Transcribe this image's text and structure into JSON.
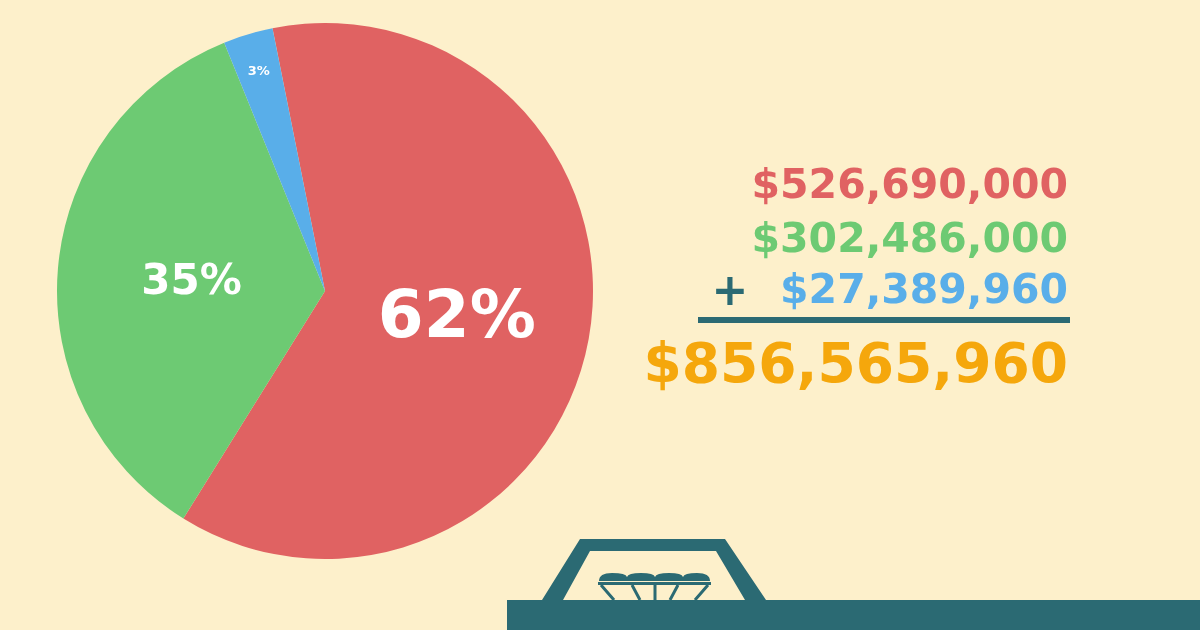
{
  "chart_data": {
    "type": "pie",
    "categories": [
      null,
      null,
      null
    ],
    "values": [
      62,
      35,
      3
    ],
    "colors": [
      "#e06262",
      "#6dca73",
      "#59aee9"
    ],
    "value_labels": [
      "62%",
      "35%",
      "3%"
    ],
    "annotations": [
      "$526,690,000",
      "$302,486,000",
      "+",
      "$27,389,960",
      "$856,565,960"
    ]
  }
}
